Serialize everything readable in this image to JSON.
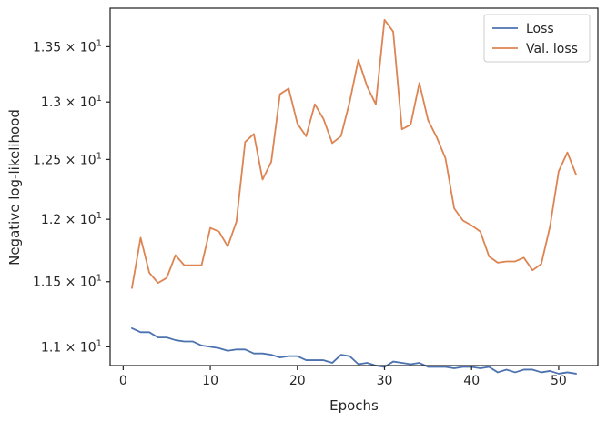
{
  "chart_data": {
    "type": "line",
    "xlabel": "Epochs",
    "ylabel": "Negative log-likelihood",
    "yscale": "log",
    "xlim": [
      -1.5,
      54.5
    ],
    "ylim": [
      10.86,
      13.86
    ],
    "xticks": [
      {
        "value": 0,
        "label": "0"
      },
      {
        "value": 10,
        "label": "10"
      },
      {
        "value": 20,
        "label": "20"
      },
      {
        "value": 30,
        "label": "30"
      },
      {
        "value": 40,
        "label": "40"
      },
      {
        "value": 50,
        "label": "50"
      }
    ],
    "yticks": [
      {
        "value": 11.0,
        "mantissa": "1.1",
        "base": "10",
        "exponent": "1"
      },
      {
        "value": 11.5,
        "mantissa": "1.15",
        "base": "10",
        "exponent": "1"
      },
      {
        "value": 12.0,
        "mantissa": "1.2",
        "base": "10",
        "exponent": "1"
      },
      {
        "value": 12.5,
        "mantissa": "1.25",
        "base": "10",
        "exponent": "1"
      },
      {
        "value": 13.0,
        "mantissa": "1.3",
        "base": "10",
        "exponent": "1"
      },
      {
        "value": 13.5,
        "mantissa": "1.35",
        "base": "10",
        "exponent": "1"
      }
    ],
    "grid": false,
    "legend_position": "top-right",
    "x": [
      1,
      2,
      3,
      4,
      5,
      6,
      7,
      8,
      9,
      10,
      11,
      12,
      13,
      14,
      15,
      16,
      17,
      18,
      19,
      20,
      21,
      22,
      23,
      24,
      25,
      26,
      27,
      28,
      29,
      30,
      31,
      32,
      33,
      34,
      35,
      36,
      37,
      38,
      39,
      40,
      41,
      42,
      43,
      44,
      45,
      46,
      47,
      48,
      49,
      50,
      51,
      52
    ],
    "series": [
      {
        "name": "Loss",
        "color": "#4c72b0",
        "values": [
          11.14,
          11.11,
          11.11,
          11.07,
          11.07,
          11.05,
          11.04,
          11.04,
          11.01,
          11.0,
          10.99,
          10.97,
          10.98,
          10.98,
          10.95,
          10.95,
          10.94,
          10.92,
          10.93,
          10.93,
          10.9,
          10.9,
          10.9,
          10.88,
          10.94,
          10.93,
          10.87,
          10.88,
          10.86,
          10.85,
          10.89,
          10.88,
          10.87,
          10.88,
          10.85,
          10.85,
          10.85,
          10.84,
          10.85,
          10.85,
          10.84,
          10.85,
          10.81,
          10.83,
          10.81,
          10.83,
          10.83,
          10.81,
          10.82,
          10.8,
          10.81,
          10.8
        ]
      },
      {
        "name": "Val. loss",
        "color": "#dd8452",
        "values": [
          11.45,
          11.85,
          11.57,
          11.49,
          11.53,
          11.71,
          11.63,
          11.63,
          11.63,
          11.93,
          11.9,
          11.78,
          11.98,
          12.65,
          12.72,
          12.33,
          12.48,
          13.07,
          13.12,
          12.81,
          12.7,
          12.98,
          12.85,
          12.64,
          12.7,
          13.0,
          13.38,
          13.14,
          12.98,
          13.75,
          13.64,
          12.76,
          12.8,
          13.17,
          12.84,
          12.69,
          12.51,
          12.09,
          11.99,
          11.95,
          11.9,
          11.7,
          11.65,
          11.66,
          11.66,
          11.69,
          11.59,
          11.64,
          11.94,
          12.4,
          12.56,
          12.37
        ]
      }
    ]
  }
}
